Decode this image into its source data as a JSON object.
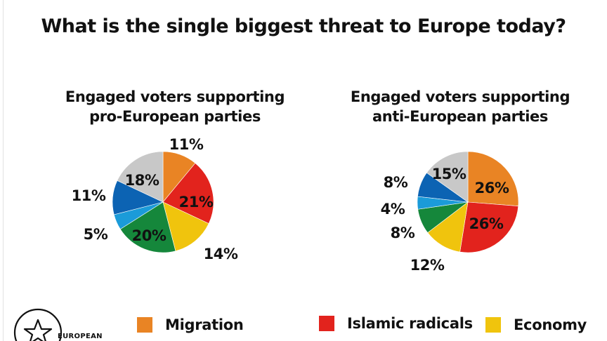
{
  "title": "What is the single biggest threat to Europe today?",
  "logo_text": "EUROPEAN",
  "colors": {
    "Migration": "#e98424",
    "Islamic radicals": "#e2231d",
    "Economy": "#f0c40d",
    "green": "#15873b",
    "light-blue": "#1b9bd9",
    "blue": "#0c63b3",
    "grey": "#c8c8c8"
  },
  "legend": [
    {
      "label": "Migration",
      "color": "#e98424"
    },
    {
      "label": "Islamic radicals",
      "color": "#e2231d"
    },
    {
      "label": "Economy",
      "color": "#f0c40d"
    }
  ],
  "chart_data": [
    {
      "type": "pie",
      "title": [
        "Engaged voters supporting",
        "pro-European parties"
      ],
      "slices": [
        {
          "key": "Migration",
          "value": 11,
          "label": "11%",
          "color": "#e98424"
        },
        {
          "key": "Islamic radicals",
          "value": 21,
          "label": "21%",
          "color": "#e2231d"
        },
        {
          "key": "Economy",
          "value": 14,
          "label": "14%",
          "color": "#f0c40d"
        },
        {
          "key": "green",
          "value": 20,
          "label": "20%",
          "color": "#15873b"
        },
        {
          "key": "light-blue",
          "value": 5,
          "label": "5%",
          "color": "#1b9bd9"
        },
        {
          "key": "blue",
          "value": 11,
          "label": "11%",
          "color": "#0c63b3"
        },
        {
          "key": "grey",
          "value": 18,
          "label": "18%",
          "color": "#c8c8c8"
        }
      ]
    },
    {
      "type": "pie",
      "title": [
        "Engaged voters supporting",
        "anti-European parties"
      ],
      "slices": [
        {
          "key": "Migration",
          "value": 26,
          "label": "26%",
          "color": "#e98424"
        },
        {
          "key": "Islamic radicals",
          "value": 26,
          "label": "26%",
          "color": "#e2231d"
        },
        {
          "key": "Economy",
          "value": 12,
          "label": "12%",
          "color": "#f0c40d"
        },
        {
          "key": "green",
          "value": 8,
          "label": "8%",
          "color": "#15873b"
        },
        {
          "key": "light-blue",
          "value": 4,
          "label": "4%",
          "color": "#1b9bd9"
        },
        {
          "key": "blue",
          "value": 8,
          "label": "8%",
          "color": "#0c63b3"
        },
        {
          "key": "grey",
          "value": 15,
          "label": "15%",
          "color": "#c8c8c8"
        }
      ]
    }
  ]
}
